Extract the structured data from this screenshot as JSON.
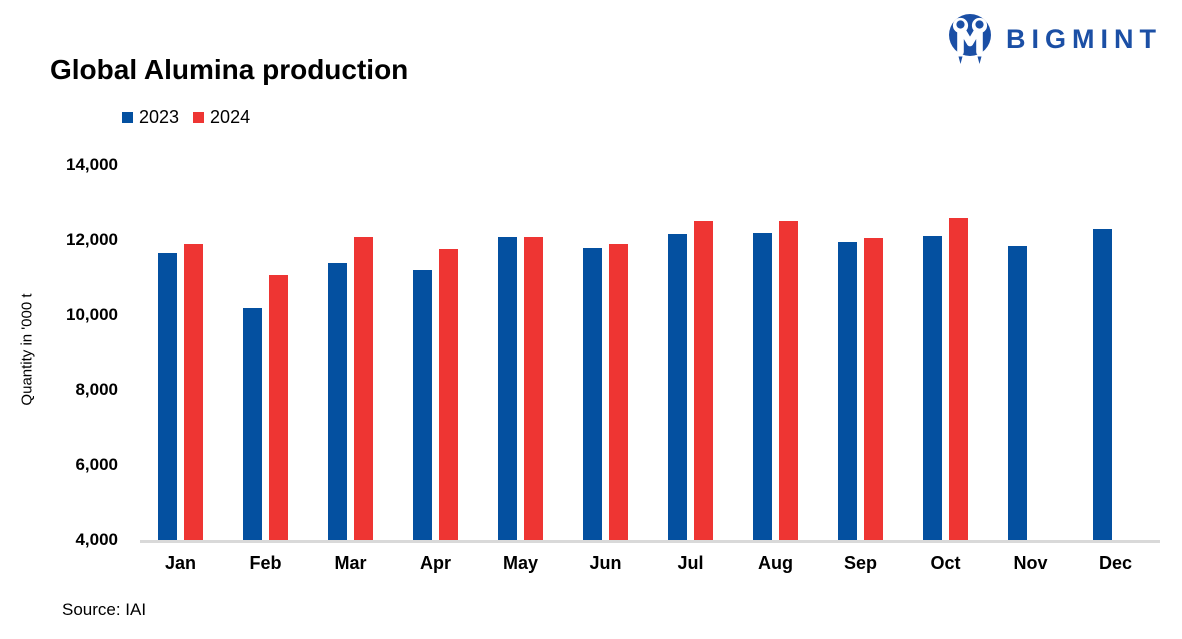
{
  "brand": {
    "name": "BIGMINT",
    "color": "#1b4fa5"
  },
  "chart_data": {
    "type": "bar",
    "title": "Global Alumina production",
    "ylabel": "Quantity in '000 t",
    "source": "Source: IAI",
    "categories": [
      "Jan",
      "Feb",
      "Mar",
      "Apr",
      "May",
      "Jun",
      "Jul",
      "Aug",
      "Sep",
      "Oct",
      "Nov",
      "Dec"
    ],
    "series": [
      {
        "name": "2023",
        "color": "#0450a0",
        "values": [
          11650,
          10200,
          11400,
          11200,
          12080,
          11800,
          12150,
          12200,
          11950,
          12100,
          11850,
          12300
        ]
      },
      {
        "name": "2024",
        "color": "#ee3533",
        "values": [
          11900,
          11070,
          12080,
          11750,
          12080,
          11900,
          12500,
          12500,
          12050,
          12600,
          null,
          null
        ]
      }
    ],
    "ylim": [
      4000,
      14000
    ],
    "ytick_step": 2000,
    "ytick_labels": [
      "14,000",
      "12,000",
      "10,000",
      "8,000",
      "6,000",
      "4,000"
    ],
    "grid": false,
    "legend_position": "top-left",
    "axis_line_color": "#d9d9d9"
  }
}
